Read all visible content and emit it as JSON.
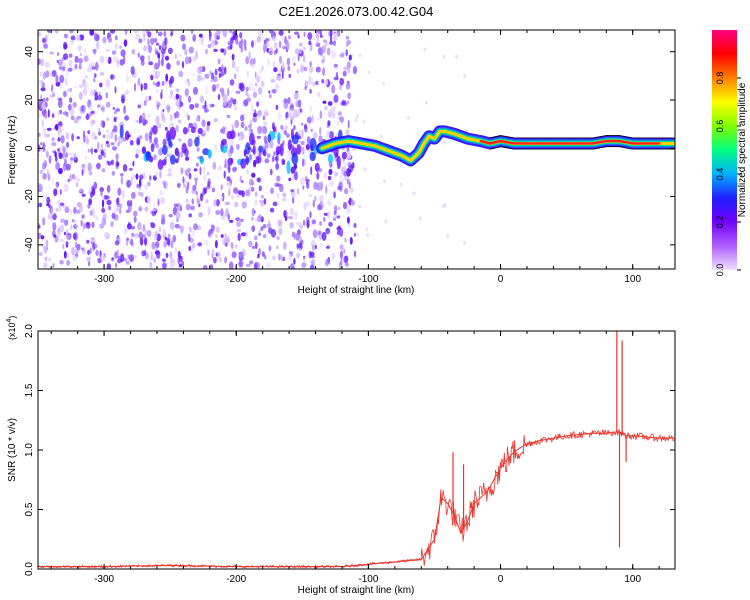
{
  "title": "C2E1.2026.073.00.42.G04",
  "colors": {
    "ink": "#000000",
    "snr_line": "#e8352e",
    "ridge_core": "#ff2020",
    "ridge_mid": "#00e070",
    "ridge_edge": "#1e5fff",
    "noise": "#8a2be2"
  },
  "colorbar": {
    "label": "Normalized spectral amplitude",
    "ticks": [
      "0.0",
      "0.2",
      "0.4",
      "0.6",
      "0.8"
    ],
    "tick_values": [
      0.0,
      0.2,
      0.4,
      0.6,
      0.8
    ],
    "range": [
      0,
      1
    ],
    "stops": [
      "#f0e0ff",
      "#b060ff",
      "#7000ff",
      "#2020ff",
      "#00b0ff",
      "#00ff80",
      "#80ff00",
      "#ffff00",
      "#ff8000",
      "#ff0000",
      "#ff0080"
    ]
  },
  "chart_data": [
    {
      "type": "heatmap",
      "xlabel": "Height of straight line (km)",
      "ylabel": "Frequency (Hz)",
      "xlim": [
        -350,
        132
      ],
      "ylim": [
        -50,
        49
      ],
      "x_ticks": [
        -300,
        -200,
        -100,
        0,
        100
      ],
      "x_tick_labels": [
        "-300",
        "-200",
        "-100",
        "0",
        "100"
      ],
      "y_ticks": [
        -40,
        -20,
        0,
        20,
        40
      ],
      "y_tick_labels": [
        "-40",
        "-20",
        "0",
        "20",
        "40"
      ],
      "noise_region_x": [
        -350,
        -110
      ],
      "ridge": {
        "x": [
          -135,
          -125,
          -115,
          -105,
          -95,
          -85,
          -75,
          -68,
          -62,
          -58,
          -54,
          -50,
          -46,
          -42,
          -35,
          -25,
          -15,
          -8,
          0,
          10,
          20,
          30,
          40,
          50,
          60,
          70,
          80,
          90,
          100,
          110,
          120,
          132
        ],
        "y": [
          0,
          2,
          3,
          2,
          1,
          -1,
          -3,
          -5,
          -2,
          2,
          5,
          4,
          7,
          7,
          6,
          4,
          3,
          2,
          3,
          2,
          2,
          2,
          2,
          2,
          2,
          2,
          3,
          3,
          2,
          2,
          2,
          2
        ],
        "amplitude": [
          0.35,
          0.4,
          0.45,
          0.5,
          0.5,
          0.45,
          0.45,
          0.5,
          0.35,
          0.4,
          0.45,
          0.5,
          0.55,
          0.6,
          0.7,
          0.75,
          0.8,
          0.8,
          0.85,
          0.9,
          0.9,
          0.9,
          0.95,
          0.95,
          0.95,
          0.95,
          0.9,
          0.9,
          0.9,
          0.85,
          0.8,
          0.75
        ]
      }
    },
    {
      "type": "line",
      "xlabel": "Height of straight line (km)",
      "ylabel": "SNR (10 * v/v)",
      "scale_label_base": "(x10",
      "scale_label_exp": "4",
      "scale_label_close": ")",
      "xlim": [
        -350,
        132
      ],
      "ylim": [
        0,
        2.0
      ],
      "x_ticks": [
        -300,
        -200,
        -100,
        0,
        100
      ],
      "x_tick_labels": [
        "-300",
        "-200",
        "-100",
        "0",
        "100"
      ],
      "y_ticks": [
        0.0,
        0.5,
        1.0,
        1.5,
        2.0
      ],
      "y_tick_labels": [
        "0.0",
        "0.5",
        "1.0",
        "1.5",
        "2.0"
      ],
      "series": [
        {
          "x": [
            -350,
            -300,
            -250,
            -200,
            -150,
            -120,
            -100,
            -80,
            -60,
            -50,
            -45,
            -40,
            -35,
            -30,
            -25,
            -20,
            -15,
            -10,
            -5,
            0,
            5,
            10,
            15,
            20,
            30,
            40,
            50,
            60,
            70,
            80,
            85,
            90,
            95,
            100,
            110,
            120,
            132
          ],
          "y": [
            0.02,
            0.02,
            0.03,
            0.02,
            0.02,
            0.02,
            0.04,
            0.06,
            0.08,
            0.25,
            0.6,
            0.55,
            0.45,
            0.3,
            0.4,
            0.55,
            0.6,
            0.65,
            0.75,
            0.85,
            0.92,
            0.98,
            1.02,
            1.05,
            1.08,
            1.1,
            1.12,
            1.13,
            1.14,
            1.14,
            1.15,
            1.15,
            1.12,
            1.12,
            1.11,
            1.1,
            1.1
          ],
          "spikes": [
            {
              "x": -36,
              "y": 0.98
            },
            {
              "x": -28,
              "y": 0.88
            },
            {
              "x": 88,
              "y": 2.0
            },
            {
              "x": 90,
              "y": 0.18
            },
            {
              "x": 92,
              "y": 1.92
            },
            {
              "x": 95,
              "y": 0.9
            }
          ]
        }
      ]
    }
  ]
}
